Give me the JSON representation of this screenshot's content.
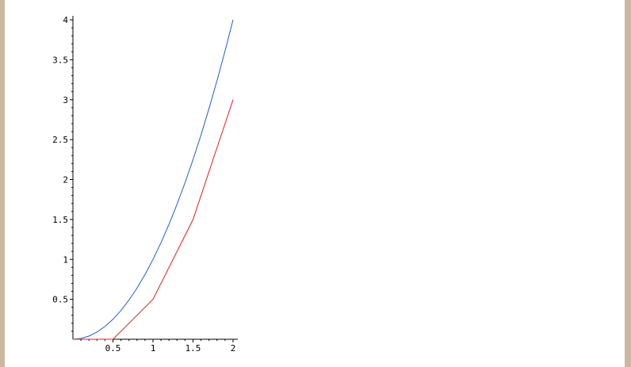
{
  "chart_data": {
    "type": "line",
    "title": "",
    "xlabel": "",
    "ylabel": "",
    "xlim": [
      0,
      2
    ],
    "ylim": [
      0,
      4
    ],
    "grid": false,
    "x_ticks": [
      0.5,
      1,
      1.5,
      2
    ],
    "x_tick_labels": [
      "0.5",
      "1",
      "1.5",
      "2"
    ],
    "y_ticks": [
      0.5,
      1,
      1.5,
      2,
      2.5,
      3,
      3.5,
      4
    ],
    "y_tick_labels": [
      "0.5",
      "1",
      "1.5",
      "2",
      "2.5",
      "3",
      "3.5",
      "4"
    ],
    "series": [
      {
        "color": "#1a5fd6",
        "points": [
          [
            0,
            0
          ],
          [
            0.1,
            0.01
          ],
          [
            0.2,
            0.04
          ],
          [
            0.3,
            0.09
          ],
          [
            0.4,
            0.16
          ],
          [
            0.5,
            0.25
          ],
          [
            0.6,
            0.36
          ],
          [
            0.7,
            0.49
          ],
          [
            0.8,
            0.64
          ],
          [
            0.9,
            0.81
          ],
          [
            1.0,
            1.0
          ],
          [
            1.1,
            1.21
          ],
          [
            1.2,
            1.44
          ],
          [
            1.3,
            1.69
          ],
          [
            1.4,
            1.96
          ],
          [
            1.5,
            2.25
          ],
          [
            1.6,
            2.56
          ],
          [
            1.7,
            2.89
          ],
          [
            1.8,
            3.24
          ],
          [
            1.9,
            3.61
          ],
          [
            2.0,
            4.0
          ]
        ]
      },
      {
        "color": "#e0201a",
        "points": [
          [
            0,
            0
          ],
          [
            0.5,
            0
          ],
          [
            0.75,
            0.25
          ],
          [
            1.0,
            0.5
          ],
          [
            1.5,
            1.5
          ],
          [
            2.0,
            3.0
          ]
        ]
      }
    ]
  }
}
